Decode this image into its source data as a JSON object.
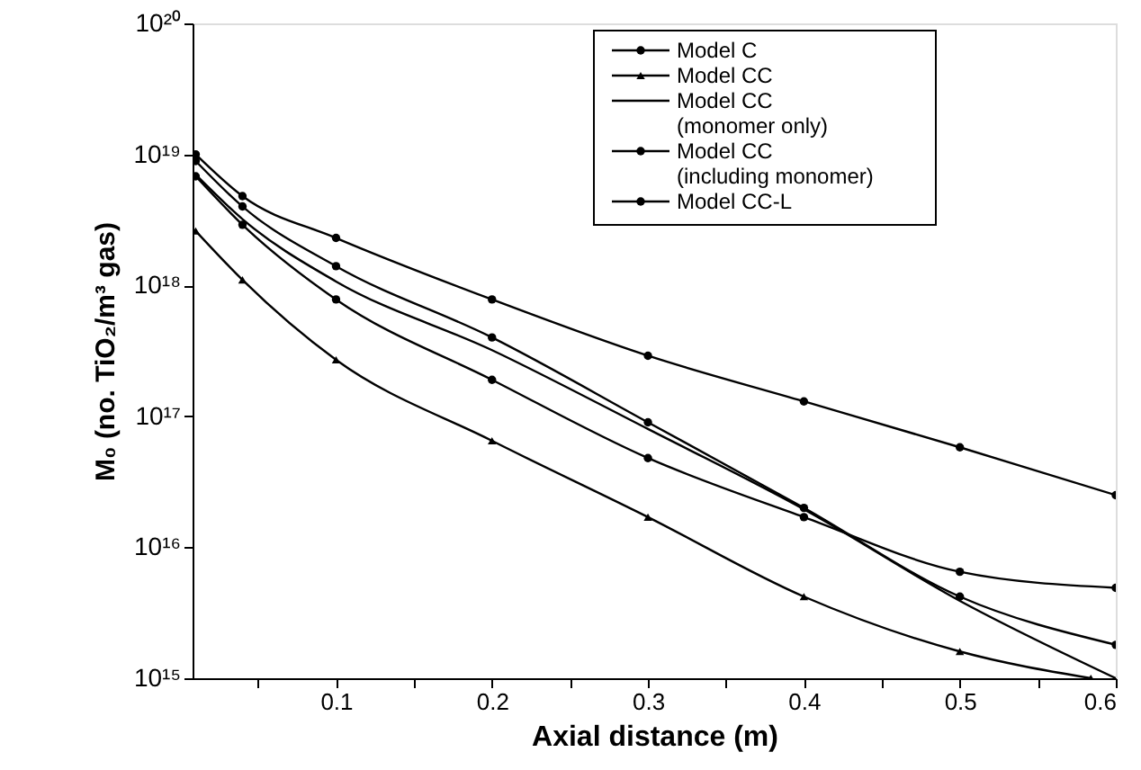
{
  "chart_data": {
    "type": "line",
    "xlabel": "Axial distance (m)",
    "ylabel": "M₀ (no. TiO₂/m³ gas)",
    "x": [
      0.01,
      0.04,
      0.1,
      0.2,
      0.3,
      0.4,
      0.5,
      0.6
    ],
    "series": [
      {
        "name": "Model C",
        "color": "#000000",
        "marker": "circle",
        "values": [
          1e+19,
          4.8e+18,
          2.3e+18,
          7.8e+17,
          2.9e+17,
          1.3e+17,
          5.8e+16,
          2.5e+16
        ]
      },
      {
        "name": "Model CC",
        "color": "#000000",
        "marker": "triangle",
        "x": [
          0.01,
          0.04,
          0.1,
          0.2,
          0.3,
          0.4,
          0.5,
          0.584
        ],
        "values": [
          2.6e+18,
          1.1e+18,
          2.7e+17,
          6.5e+16,
          1.7e+16,
          4200000000000000.0,
          1600000000000000.0,
          1000000000000000.0
        ]
      },
      {
        "name": "Model CC\n(monomer only)",
        "color": "#000000",
        "marker": "none",
        "values": [
          7e+18,
          3.2e+18,
          1.07e+18,
          3.2e+17,
          8e+16,
          1.95e+16,
          3900000000000000.0,
          1000000000000000.0
        ]
      },
      {
        "name": "Model CC\n(including monomer)",
        "color": "#000000",
        "marker": "circle",
        "values": [
          8.9e+18,
          4e+18,
          1.4e+18,
          4e+17,
          9e+16,
          2e+16,
          4200000000000000.0,
          1800000000000000.0
        ]
      },
      {
        "name": "Model CC-L",
        "color": "#000000",
        "marker": "circle",
        "values": [
          6.8e+18,
          2.9e+18,
          7.8e+17,
          1.9e+17,
          4.8e+16,
          1.7e+16,
          6500000000000000.0,
          4900000000000000.0
        ]
      }
    ],
    "log": "y",
    "xlim": [
      0.008,
      0.6
    ],
    "xticks": [
      {
        "value": 0.05,
        "label": null
      },
      0.1,
      {
        "value": 0.15,
        "label": null
      },
      0.2,
      {
        "value": 0.25,
        "label": null
      },
      0.3,
      {
        "value": 0.35,
        "label": null
      },
      0.4,
      {
        "value": 0.45,
        "label": null
      },
      0.5,
      {
        "value": 0.55,
        "label": null
      },
      0.6
    ],
    "ylim": [
      1000000000000000.0,
      1e+20
    ],
    "yticks": [
      {
        "value": 1000000000000000.0,
        "label": "10¹⁵"
      },
      {
        "value": 1e+16,
        "label": "10¹⁶"
      },
      {
        "value": 1e+17,
        "label": "10¹⁷"
      },
      {
        "value": 1e+18,
        "label": "10¹⁸"
      },
      {
        "value": 1e+19,
        "label": "10¹⁹"
      },
      {
        "value": 1e+20,
        "label": "10²⁰"
      }
    ],
    "grid": false,
    "legend": "top right",
    "line_style": "solid"
  }
}
